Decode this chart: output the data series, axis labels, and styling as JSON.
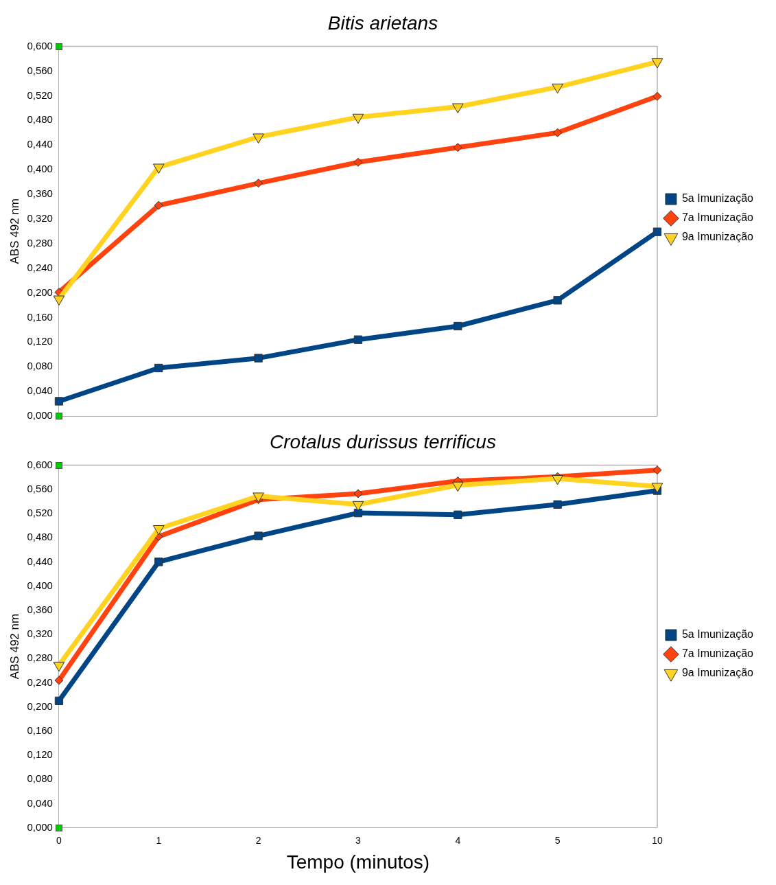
{
  "chart_data": [
    {
      "type": "line",
      "title": "Bitis arietans",
      "ylabel": "ABS 492 nm",
      "categories": [
        "0",
        "1",
        "2",
        "3",
        "4",
        "5",
        "10"
      ],
      "tick_labels": "y",
      "legend": "right",
      "ylim": [
        0,
        0.6
      ],
      "yticks": [
        {
          "value": 0,
          "label": "0,000"
        },
        {
          "value": 0.04,
          "label": "0,040"
        },
        {
          "value": 0.08,
          "label": "0,080"
        },
        {
          "value": 0.12,
          "label": "0,120"
        },
        {
          "value": 0.16,
          "label": "0,160"
        },
        {
          "value": 0.2,
          "label": "0,200"
        },
        {
          "value": 0.24,
          "label": "0,240"
        },
        {
          "value": 0.28,
          "label": "0,280"
        },
        {
          "value": 0.32,
          "label": "0,320"
        },
        {
          "value": 0.36,
          "label": "0,360"
        },
        {
          "value": 0.4,
          "label": "0,400"
        },
        {
          "value": 0.44,
          "label": "0,440"
        },
        {
          "value": 0.48,
          "label": "0,480"
        },
        {
          "value": 0.52,
          "label": "0,520"
        },
        {
          "value": 0.56,
          "label": "0,560"
        },
        {
          "value": 0.6,
          "label": "0,600"
        }
      ],
      "series": [
        {
          "name": "5a Imunização",
          "color": "#004586",
          "marker": "square",
          "values": [
            0.024,
            0.078,
            0.094,
            0.124,
            0.146,
            0.188,
            0.299
          ]
        },
        {
          "name": "7a Imunização",
          "color": "#ff420e",
          "marker": "diamond",
          "values": [
            0.201,
            0.342,
            0.378,
            0.412,
            0.436,
            0.46,
            0.519
          ]
        },
        {
          "name": "9a Imunização",
          "color": "#ffd320",
          "marker": "triangle",
          "values": [
            0.19,
            0.404,
            0.453,
            0.485,
            0.502,
            0.534,
            0.575
          ]
        }
      ]
    },
    {
      "type": "line",
      "title": "Crotalus durissus terrificus",
      "ylabel": "ABS 492 nm",
      "xlabel": "Tempo (minutos)",
      "categories": [
        "0",
        "1",
        "2",
        "3",
        "4",
        "5",
        "10"
      ],
      "legend": "right",
      "ylim": [
        0,
        0.6
      ],
      "yticks": [
        {
          "value": 0,
          "label": "0,000"
        },
        {
          "value": 0.04,
          "label": "0,040"
        },
        {
          "value": 0.08,
          "label": "0,080"
        },
        {
          "value": 0.12,
          "label": "0,120"
        },
        {
          "value": 0.16,
          "label": "0,160"
        },
        {
          "value": 0.2,
          "label": "0,200"
        },
        {
          "value": 0.24,
          "label": "0,240"
        },
        {
          "value": 0.28,
          "label": "0,280"
        },
        {
          "value": 0.32,
          "label": "0,320"
        },
        {
          "value": 0.36,
          "label": "0,360"
        },
        {
          "value": 0.4,
          "label": "0,400"
        },
        {
          "value": 0.44,
          "label": "0,440"
        },
        {
          "value": 0.48,
          "label": "0,480"
        },
        {
          "value": 0.52,
          "label": "0,520"
        },
        {
          "value": 0.56,
          "label": "0,560"
        },
        {
          "value": 0.6,
          "label": "0,600"
        }
      ],
      "series": [
        {
          "name": "5a Imunização",
          "color": "#004586",
          "marker": "square",
          "values": [
            0.21,
            0.44,
            0.483,
            0.521,
            0.518,
            0.535,
            0.558
          ]
        },
        {
          "name": "7a Imunização",
          "color": "#ff420e",
          "marker": "diamond",
          "values": [
            0.244,
            0.482,
            0.543,
            0.553,
            0.574,
            0.581,
            0.592
          ]
        },
        {
          "name": "9a Imunização",
          "color": "#ffd320",
          "marker": "triangle",
          "values": [
            0.269,
            0.495,
            0.549,
            0.535,
            0.567,
            0.578,
            0.565
          ]
        }
      ]
    }
  ]
}
